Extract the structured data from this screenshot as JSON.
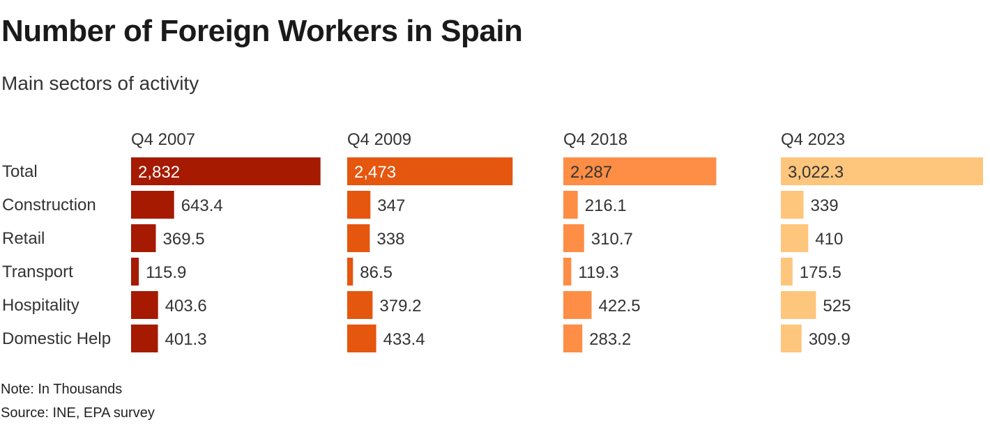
{
  "header": {
    "title": "Number of Foreign Workers in Spain",
    "subtitle": "Main sectors of activity"
  },
  "footer": {
    "note": "Note: In Thousands",
    "source": "Source: INE, EPA survey"
  },
  "chart_data": {
    "type": "bar",
    "orientation": "horizontal",
    "layout": "small-multiples",
    "title": "Number of Foreign Workers in Spain",
    "subtitle": "Main sectors of activity",
    "unit": "thousands",
    "categories": [
      "Total",
      "Construction",
      "Retail",
      "Transport",
      "Hospitality",
      "Domestic Help"
    ],
    "series": [
      {
        "name": "Q4 2007",
        "color": "#a51a00",
        "values": [
          2832,
          643.4,
          369.5,
          115.9,
          403.6,
          401.3
        ],
        "labels": [
          "2,832",
          "643.4",
          "369.5",
          "115.9",
          "403.6",
          "401.3"
        ],
        "total_label_color": "#ffffff"
      },
      {
        "name": "Q4 2009",
        "color": "#e5560f",
        "values": [
          2473,
          347,
          338,
          86.5,
          379.2,
          433.4
        ],
        "labels": [
          "2,473",
          "347",
          "338",
          "86.5",
          "379.2",
          "433.4"
        ],
        "total_label_color": "#ffffff"
      },
      {
        "name": "Q4 2018",
        "color": "#fe8d45",
        "values": [
          2287,
          216.1,
          310.7,
          119.3,
          422.5,
          283.2
        ],
        "labels": [
          "2,287",
          "216.1",
          "310.7",
          "119.3",
          "422.5",
          "283.2"
        ],
        "total_label_color": "#333333"
      },
      {
        "name": "Q4 2023",
        "color": "#fec57c",
        "values": [
          3022.3,
          339,
          410,
          175.5,
          525,
          309.9
        ],
        "labels": [
          "3,022.3",
          "339",
          "410",
          "175.5",
          "525",
          "309.9"
        ],
        "total_label_color": "#333333"
      }
    ],
    "xlim": [
      0,
      3022.3
    ],
    "grid": false,
    "legend": "none",
    "note": "Note: In Thousands",
    "source": "Source: INE, EPA survey"
  }
}
